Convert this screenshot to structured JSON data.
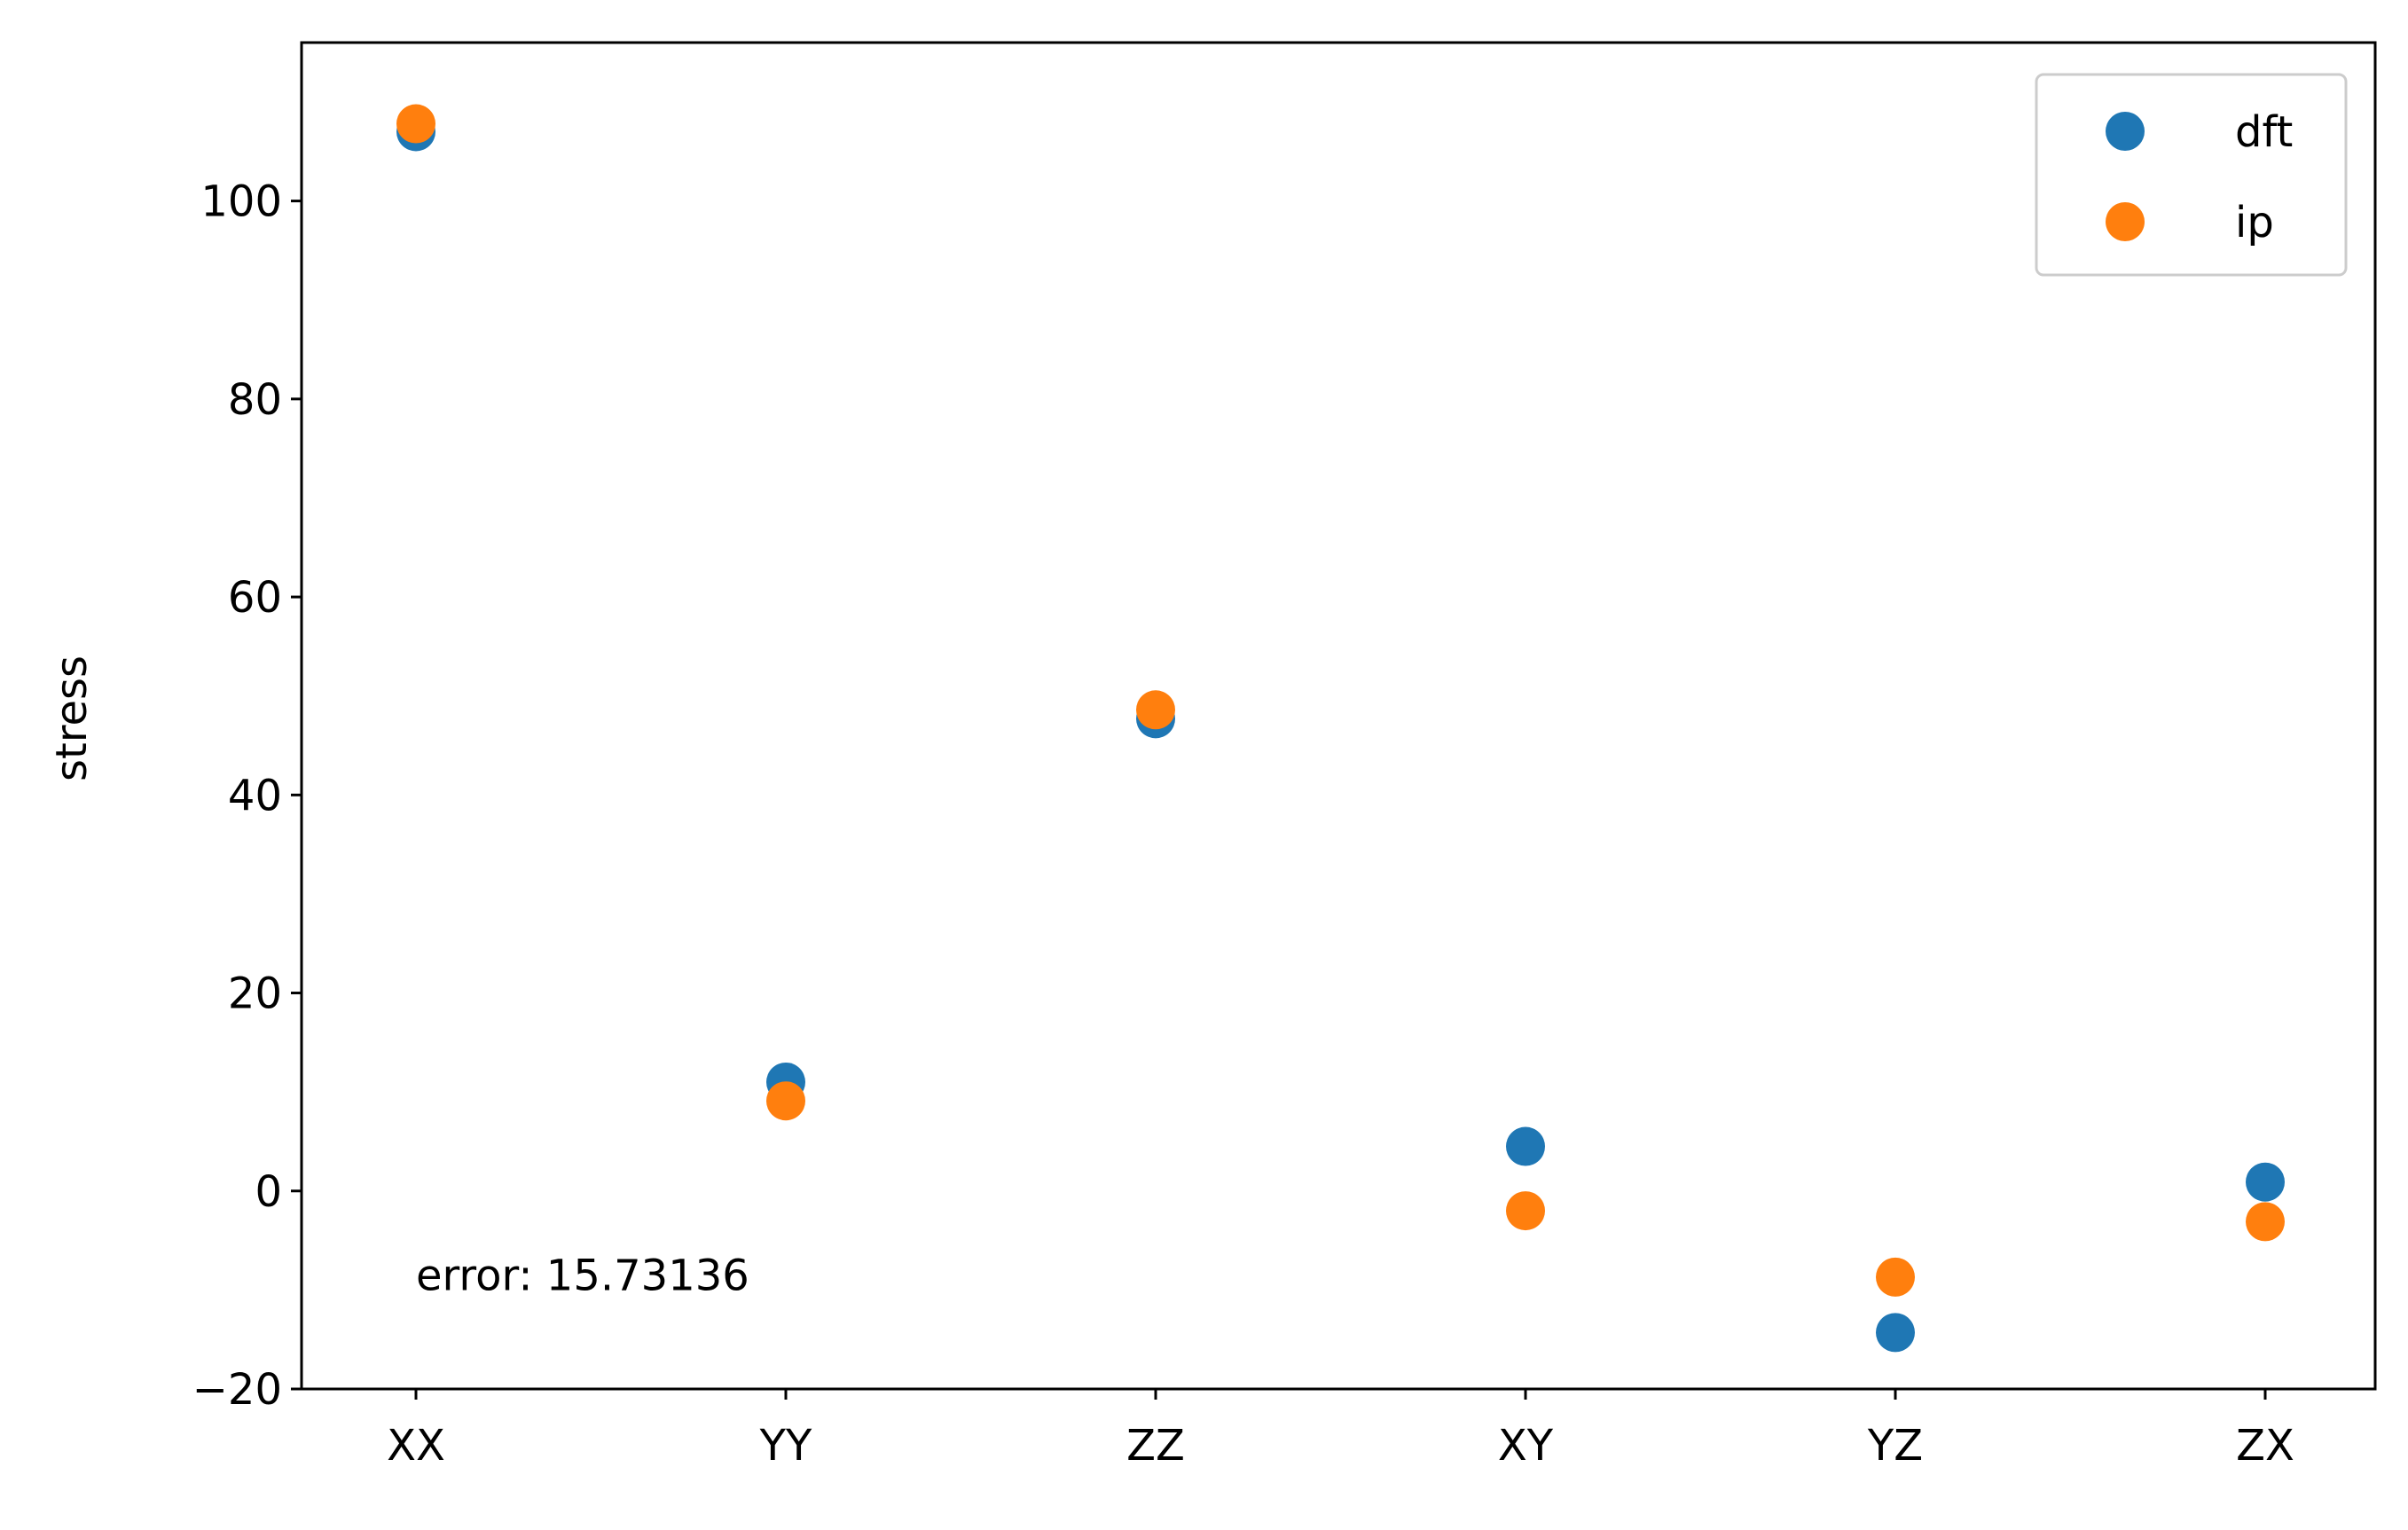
{
  "chart_data": {
    "type": "scatter",
    "title": "",
    "xlabel": "",
    "ylabel": "stress",
    "categories": [
      "XX",
      "YY",
      "ZZ",
      "XY",
      "YZ",
      "ZX"
    ],
    "series": [
      {
        "name": "dft",
        "color": "#1f77b4",
        "values": [
          107,
          11,
          47.7,
          4.5,
          -14.3,
          0.9
        ]
      },
      {
        "name": "ip",
        "color": "#ff7f0e",
        "values": [
          107.8,
          9.1,
          48.6,
          -2,
          -8.7,
          -3.1
        ]
      }
    ],
    "ylim": [
      -20,
      116
    ],
    "yticks": [
      -20,
      0,
      20,
      40,
      60,
      80,
      100
    ],
    "grid": false,
    "legend_position": "top-right",
    "annotation": {
      "text": "error: 15.73136",
      "x": "XX",
      "y": -8.5
    }
  }
}
